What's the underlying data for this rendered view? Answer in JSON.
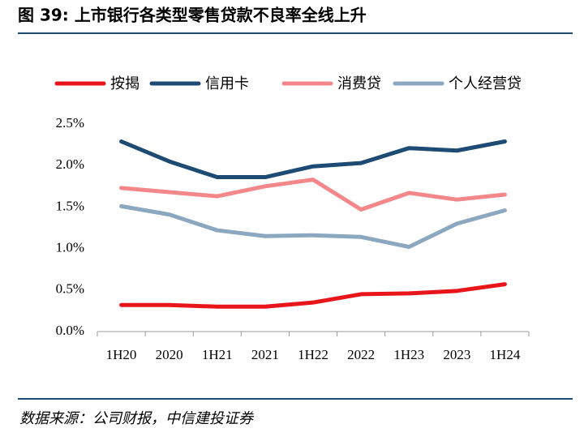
{
  "chart_data": {
    "type": "line",
    "title": "图 39:  上市银行各类型零售贷款不良率全线上升",
    "source": "数据来源：公司财报，中信建投证券",
    "categories": [
      "1H20",
      "2020",
      "1H21",
      "2021",
      "1H22",
      "2022",
      "1H23",
      "2023",
      "1H24"
    ],
    "series": [
      {
        "name": "按揭",
        "color": "#e8161b",
        "values": [
          0.32,
          0.32,
          0.3,
          0.3,
          0.35,
          0.45,
          0.46,
          0.49,
          0.57
        ]
      },
      {
        "name": "信用卡",
        "color": "#1d4b73",
        "values": [
          2.29,
          2.05,
          1.86,
          1.86,
          1.99,
          2.03,
          2.21,
          2.18,
          2.29
        ]
      },
      {
        "name": "消费贷",
        "color": "#f4878a",
        "values": [
          1.73,
          1.68,
          1.63,
          1.75,
          1.83,
          1.47,
          1.67,
          1.59,
          1.65
        ]
      },
      {
        "name": "个人经营贷",
        "color": "#8ba8c0",
        "values": [
          1.51,
          1.41,
          1.22,
          1.15,
          1.16,
          1.14,
          1.02,
          1.3,
          1.46
        ]
      }
    ],
    "ylim": [
      0,
      2.5
    ],
    "yticks": [
      {
        "value": 0,
        "label": "0.0%"
      },
      {
        "value": 0.5,
        "label": "0.5%"
      },
      {
        "value": 1,
        "label": "1.0%"
      },
      {
        "value": 1.5,
        "label": "1.5%"
      },
      {
        "value": 2,
        "label": "2.0%"
      },
      {
        "value": 2.5,
        "label": "2.5%"
      }
    ],
    "grid": false,
    "legend": "top"
  }
}
